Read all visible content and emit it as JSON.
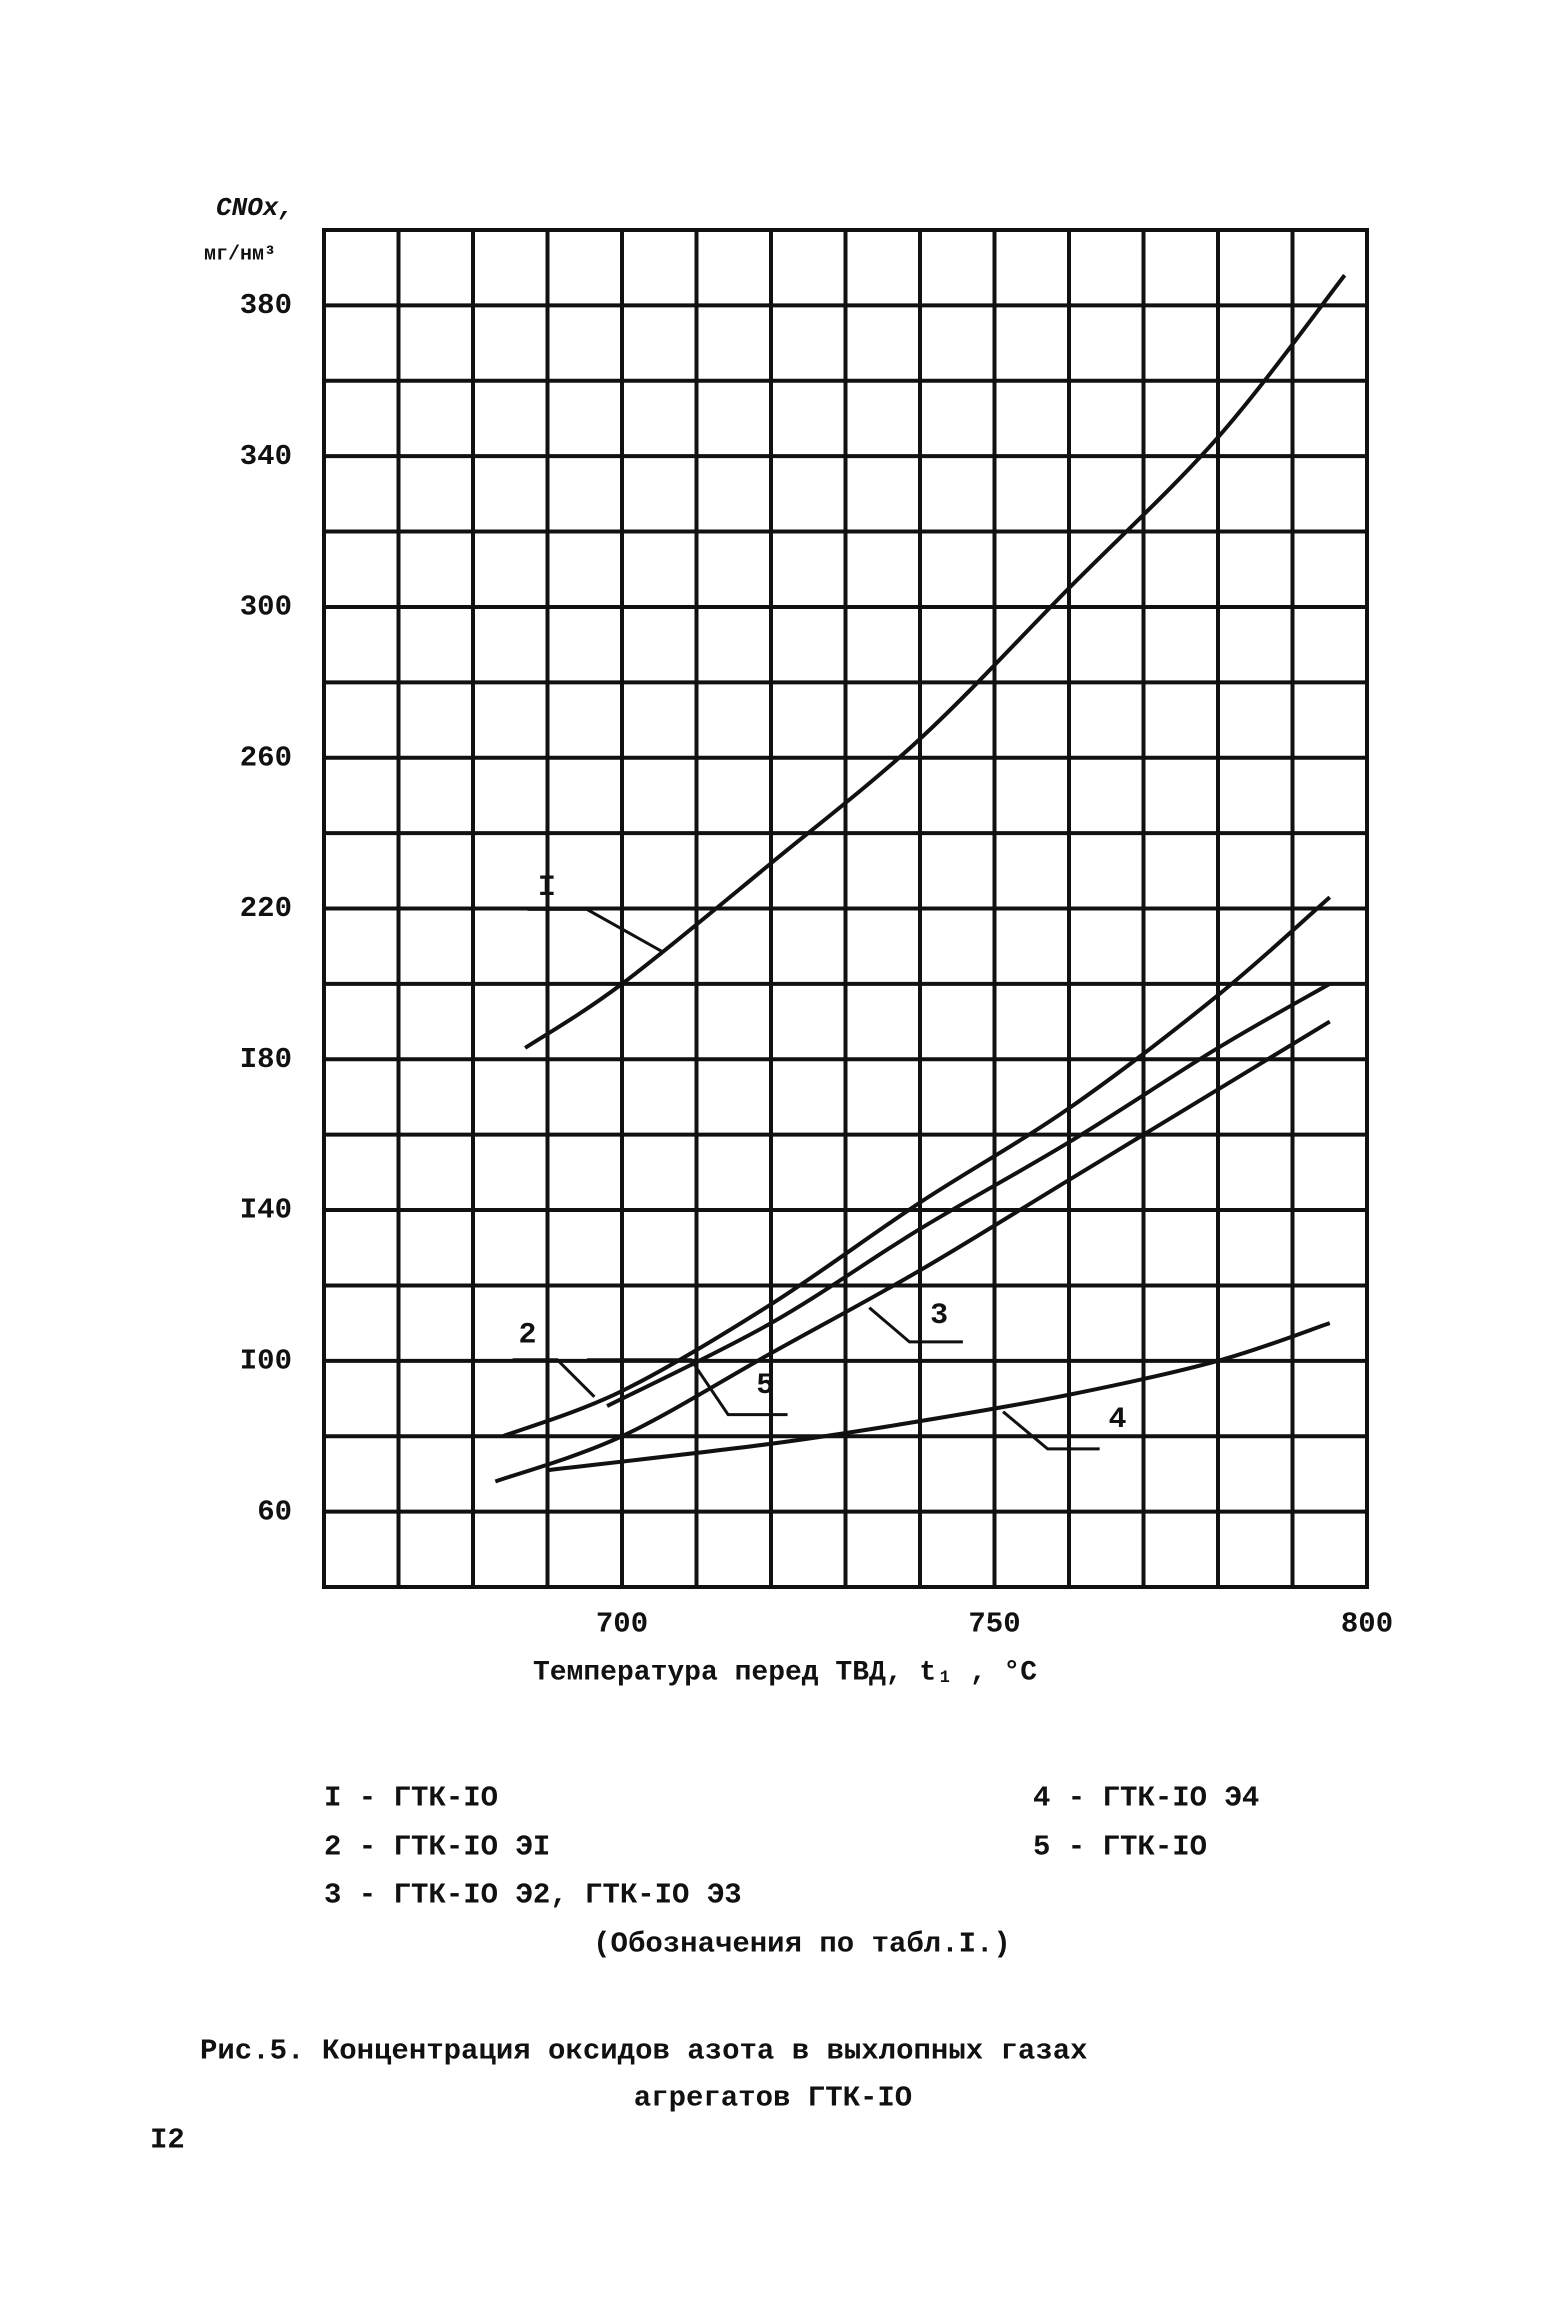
{
  "chart_data": {
    "type": "line",
    "ylabel": [
      "CNOx,",
      "мг/нм³"
    ],
    "xlabel": "Температура перед ТВД, t₁ , °C",
    "xlim": [
      660,
      800
    ],
    "ylim": [
      40,
      400
    ],
    "xticks": [
      700,
      750,
      800
    ],
    "yticks": [
      60,
      {
        "value": 100,
        "label": "I00"
      },
      {
        "value": 140,
        "label": "I40"
      },
      {
        "value": 180,
        "label": "I80"
      },
      220,
      260,
      300,
      340,
      380
    ],
    "xgrid": [
      670,
      680,
      690,
      700,
      710,
      720,
      730,
      740,
      750,
      760,
      770,
      780,
      790
    ],
    "ygrid": [
      60,
      80,
      100,
      120,
      140,
      160,
      180,
      200,
      220,
      240,
      260,
      280,
      300,
      320,
      340,
      360,
      380
    ],
    "color": "#111111",
    "series": [
      {
        "name": "I",
        "x": [
          687,
          700,
          720,
          740,
          760,
          780,
          797
        ],
        "values": [
          183,
          200,
          232,
          265,
          305,
          345,
          388
        ]
      },
      {
        "name": "2",
        "x": [
          684,
          700,
          720,
          740,
          760,
          780,
          795
        ],
        "values": [
          80,
          92,
          115,
          142,
          167,
          197,
          223
        ]
      },
      {
        "name": "5",
        "x": [
          698,
          720,
          740,
          760,
          780,
          795
        ],
        "values": [
          88,
          110,
          135,
          158,
          183,
          200
        ]
      },
      {
        "name": "3",
        "x": [
          683,
          700,
          720,
          740,
          760,
          780,
          795
        ],
        "values": [
          68,
          80,
          102,
          124,
          148,
          172,
          190
        ]
      },
      {
        "name": "4",
        "x": [
          690,
          720,
          740,
          760,
          780,
          795
        ],
        "values": [
          71,
          78,
          84,
          91,
          100,
          110
        ]
      }
    ]
  },
  "legend": [
    "I - ГТК-IO",
    "2 - ГТК-IO ЭI",
    "3 - ГТК-IO Э2, ГТК-IO Э3",
    "4 - ГТК-IO Э4",
    "5 - ГТК-IO"
  ],
  "note": "(Обозначения по табл.I.)",
  "caption": [
    "Рис.5. Концентрация оксидов азота в выхлопных газах",
    "агрегатов ГТК-IO"
  ],
  "page_number": "I2"
}
